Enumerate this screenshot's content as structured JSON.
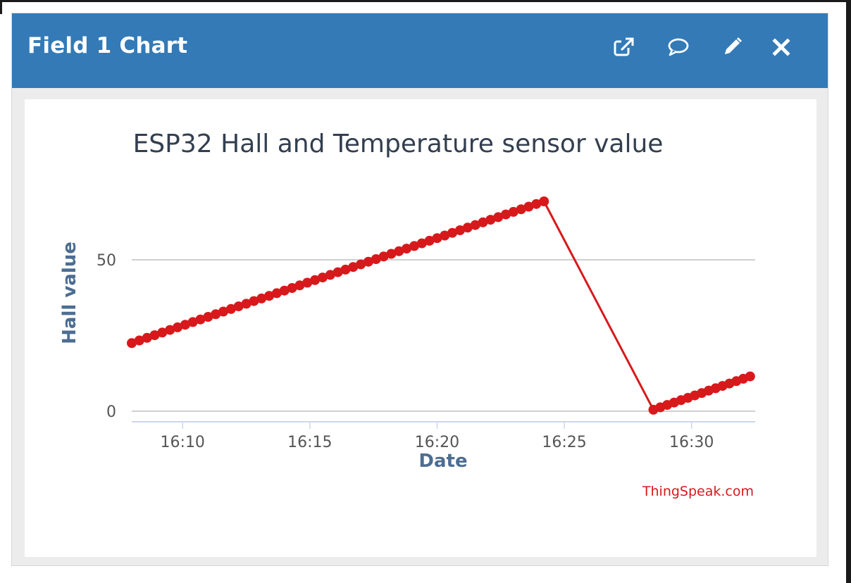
{
  "panel": {
    "title": "Field 1 Chart",
    "icons": [
      {
        "name": "external-link-icon"
      },
      {
        "name": "comment-icon"
      },
      {
        "name": "pencil-icon"
      },
      {
        "name": "close-icon"
      }
    ]
  },
  "chart_data": {
    "type": "line",
    "title": "ESP32 Hall and Temperature sensor value",
    "xlabel": "Date",
    "ylabel": "Hall value",
    "credit": "ThingSpeak.com",
    "x_unit": "minutes",
    "xlim": [
      "16:08",
      "16:32.5"
    ],
    "ylim": [
      0,
      50
    ],
    "x_ticks": [
      "16:10",
      "16:15",
      "16:20",
      "16:25",
      "16:30"
    ],
    "y_ticks": [
      0,
      50
    ],
    "grid": true,
    "legend": "none",
    "colors": {
      "series": "#d7191c",
      "grid": "#c0c0c0",
      "axis": "#ccd6eb",
      "header": "#337ab7"
    },
    "series": [
      {
        "segments": [
          {
            "start": "16:08",
            "end": "16:24.2",
            "y_start": 22.5,
            "y_end": 69.3,
            "points": 55
          },
          {
            "start": "16:28.5",
            "end": "16:32.3",
            "y_start": 0.5,
            "y_end": 11.5,
            "points": 15
          }
        ]
      }
    ]
  }
}
